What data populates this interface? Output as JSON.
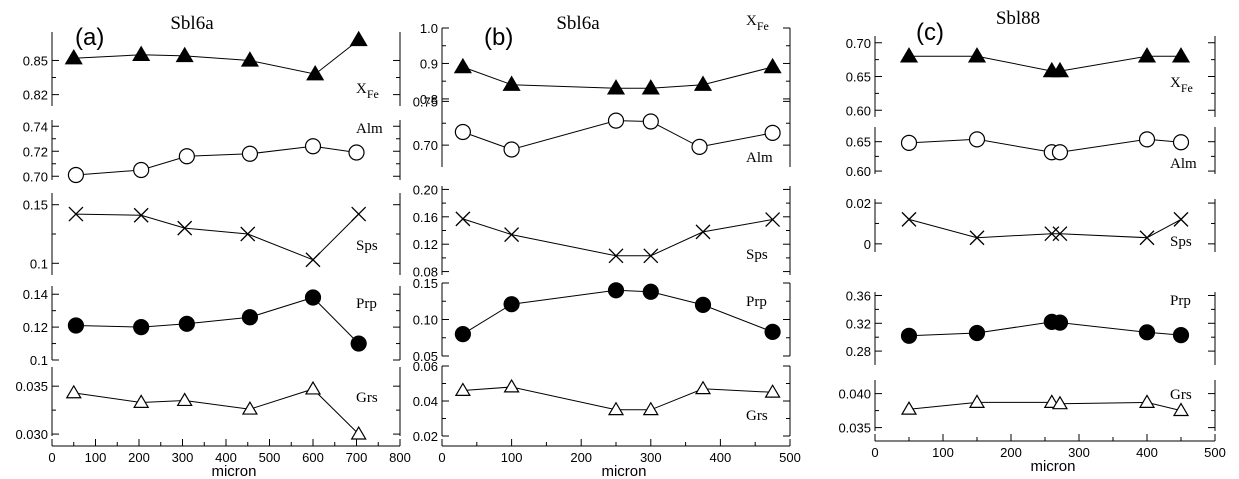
{
  "chart_data": [
    {
      "type": "line",
      "panel_label": "(a)",
      "sample": "Sbl6a",
      "xlabel": "micron",
      "xlim": [
        0,
        800
      ],
      "xticks": [
        "0",
        "100",
        "200",
        "300",
        "400",
        "500",
        "600",
        "700",
        "800"
      ],
      "rows": [
        {
          "label": "X",
          "label_sub": "Fe",
          "marker": "triangle-filled",
          "ylim": [
            0.81,
            0.875
          ],
          "yticks": [
            "0.82",
            "0.85"
          ],
          "x": [
            50,
            205,
            305,
            455,
            605,
            705
          ],
          "y": [
            0.852,
            0.855,
            0.854,
            0.85,
            0.838,
            0.868
          ]
        },
        {
          "label": "Alm",
          "label_sub": "",
          "marker": "circle-open",
          "ylim": [
            0.697,
            0.745
          ],
          "yticks": [
            "0.70",
            "0.72",
            "0.74"
          ],
          "x": [
            55,
            205,
            310,
            455,
            600,
            700
          ],
          "y": [
            0.701,
            0.705,
            0.716,
            0.718,
            0.724,
            0.719
          ]
        },
        {
          "label": "Sps",
          "label_sub": "",
          "marker": "x",
          "ylim": [
            0.09,
            0.16
          ],
          "yticks": [
            "0.1",
            "0.15"
          ],
          "x": [
            55,
            205,
            305,
            450,
            600,
            705
          ],
          "y": [
            0.142,
            0.141,
            0.13,
            0.125,
            0.103,
            0.142
          ]
        },
        {
          "label": "Prp",
          "label_sub": "",
          "marker": "circle-filled",
          "ylim": [
            0.1,
            0.145
          ],
          "yticks": [
            "0.1",
            "0.12",
            "0.14"
          ],
          "x": [
            55,
            205,
            310,
            455,
            600,
            705
          ],
          "y": [
            0.121,
            0.12,
            0.122,
            0.126,
            0.138,
            0.11
          ]
        },
        {
          "label": "Grs",
          "label_sub": "",
          "marker": "triangle-open",
          "ylim": [
            0.0298,
            0.037
          ],
          "yticks": [
            "0.030",
            "0.035"
          ],
          "x": [
            50,
            205,
            305,
            455,
            600,
            705
          ],
          "y": [
            0.0343,
            0.0333,
            0.0335,
            0.0326,
            0.0347,
            0.03
          ]
        }
      ]
    },
    {
      "type": "line",
      "panel_label": "(b)",
      "sample": "Sbl6a",
      "xlabel": "micron",
      "xlim": [
        0,
        500
      ],
      "xticks": [
        "0",
        "100",
        "200",
        "300",
        "400",
        "500"
      ],
      "rows": [
        {
          "label": "X",
          "label_sub": "Fe",
          "marker": "triangle-filled",
          "ylim": [
            0.78,
            1.0
          ],
          "yticks": [
            "0.8",
            "0.9",
            "1.0"
          ],
          "x": [
            30,
            100,
            250,
            300,
            375,
            475
          ],
          "y": [
            0.89,
            0.84,
            0.83,
            0.83,
            0.84,
            0.89
          ]
        },
        {
          "label": "Alm",
          "label_sub": "",
          "marker": "circle-open",
          "ylim": [
            0.675,
            0.755
          ],
          "yticks": [
            "0.70",
            "0.75"
          ],
          "x": [
            30,
            100,
            250,
            300,
            370,
            475
          ],
          "y": [
            0.715,
            0.695,
            0.728,
            0.727,
            0.698,
            0.714
          ]
        },
        {
          "label": "Sps",
          "label_sub": "",
          "marker": "x",
          "ylim": [
            0.075,
            0.205
          ],
          "yticks": [
            "0.08",
            "0.12",
            "0.16",
            "0.20"
          ],
          "x": [
            30,
            100,
            250,
            300,
            375,
            475
          ],
          "y": [
            0.157,
            0.134,
            0.103,
            0.103,
            0.138,
            0.156
          ]
        },
        {
          "label": "Prp",
          "label_sub": "",
          "marker": "circle-filled",
          "ylim": [
            0.05,
            0.15
          ],
          "yticks": [
            "0.05",
            "0.10",
            "0.15"
          ],
          "x": [
            30,
            100,
            250,
            300,
            375,
            475
          ],
          "y": [
            0.08,
            0.121,
            0.14,
            0.138,
            0.12,
            0.083
          ]
        },
        {
          "label": "Grs",
          "label_sub": "",
          "marker": "triangle-open",
          "ylim": [
            0.02,
            0.06
          ],
          "yticks": [
            "0.02",
            "0.04",
            "0.06"
          ],
          "x": [
            30,
            100,
            250,
            300,
            375,
            475
          ],
          "y": [
            0.046,
            0.048,
            0.035,
            0.035,
            0.047,
            0.045
          ]
        }
      ]
    },
    {
      "type": "line",
      "panel_label": "(c)",
      "sample": "Sbl88",
      "xlabel": "micron",
      "xlim": [
        0,
        500
      ],
      "xticks": [
        "0",
        "100",
        "200",
        "300",
        "400",
        "500"
      ],
      "rows": [
        {
          "label": "X",
          "label_sub": "Fe",
          "marker": "triangle-filled",
          "ylim": [
            0.59,
            0.71
          ],
          "yticks": [
            "0.60",
            "0.65",
            "0.70"
          ],
          "x": [
            50,
            150,
            260,
            272,
            400,
            450
          ],
          "y": [
            0.68,
            0.68,
            0.658,
            0.658,
            0.68,
            0.68
          ]
        },
        {
          "label": "Alm",
          "label_sub": "",
          "marker": "circle-open",
          "ylim": [
            0.595,
            0.675
          ],
          "yticks": [
            "0.60",
            "0.65"
          ],
          "x": [
            50,
            150,
            260,
            272,
            400,
            450
          ],
          "y": [
            0.648,
            0.654,
            0.632,
            0.632,
            0.654,
            0.649
          ]
        },
        {
          "label": "Sps",
          "label_sub": "",
          "marker": "x",
          "ylim": [
            -0.004,
            0.022
          ],
          "yticks": [
            "0",
            "0.02"
          ],
          "x": [
            50,
            150,
            260,
            272,
            400,
            450
          ],
          "y": [
            0.012,
            0.003,
            0.005,
            0.005,
            0.003,
            0.012
          ]
        },
        {
          "label": "Prp",
          "label_sub": "",
          "marker": "circle-filled",
          "ylim": [
            0.26,
            0.365
          ],
          "yticks": [
            "0.28",
            "0.32",
            "0.36"
          ],
          "x": [
            50,
            150,
            260,
            272,
            400,
            450
          ],
          "y": [
            0.302,
            0.306,
            0.322,
            0.321,
            0.307,
            0.303
          ]
        },
        {
          "label": "Grs",
          "label_sub": "",
          "marker": "triangle-open",
          "ylim": [
            0.0345,
            0.042
          ],
          "yticks": [
            "0.035",
            "0.040"
          ],
          "x": [
            50,
            150,
            260,
            272,
            400,
            450
          ],
          "y": [
            0.0377,
            0.0387,
            0.0387,
            0.0385,
            0.0387,
            0.0375
          ]
        }
      ]
    }
  ]
}
